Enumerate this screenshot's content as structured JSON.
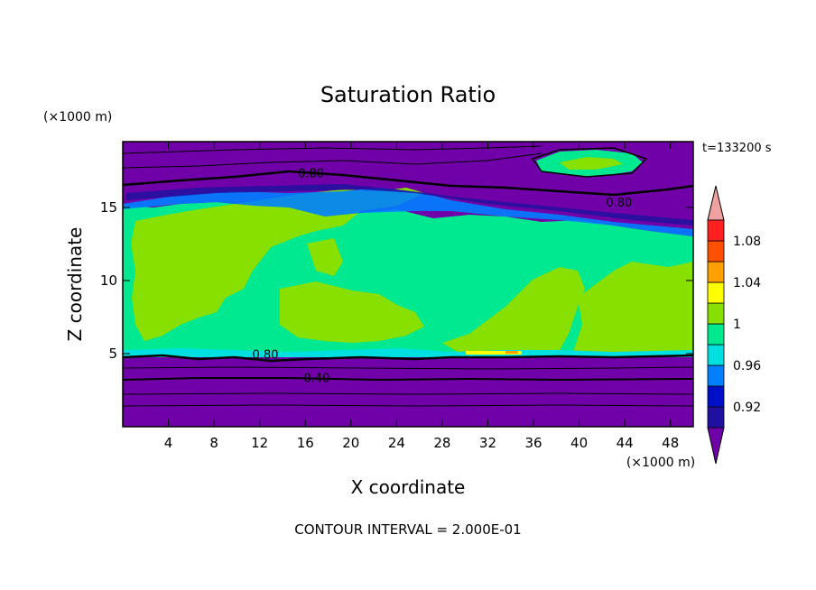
{
  "chart_data": {
    "type": "contour",
    "title": "Saturation Ratio",
    "xlabel": "X coordinate",
    "ylabel": "Z coordinate",
    "x_unit": "(×1000 m)",
    "y_unit": "(×1000 m)",
    "time_label": "t=133200 s",
    "footer": "CONTOUR INTERVAL = 2.000E-01",
    "xlim": [
      0,
      50
    ],
    "ylim": [
      0,
      19.5
    ],
    "x_ticks": [
      4,
      8,
      12,
      16,
      20,
      24,
      28,
      32,
      36,
      40,
      44,
      48
    ],
    "y_ticks": [
      5,
      10,
      15
    ],
    "contour_labels": [
      {
        "text": "0.80",
        "x": 16.5,
        "z": 17.3
      },
      {
        "text": "0.80",
        "x": 43.5,
        "z": 15.3
      },
      {
        "text": "0.80",
        "x": 12.5,
        "z": 4.9
      },
      {
        "text": "0.40",
        "x": 17.0,
        "z": 3.3
      }
    ],
    "colorbar": {
      "labels": [
        "1.08",
        "1.04",
        "1",
        "0.96",
        "0.92"
      ],
      "levels": [
        0.9,
        0.92,
        0.94,
        0.96,
        0.98,
        1.0,
        1.02,
        1.04,
        1.06,
        1.08,
        1.1
      ],
      "colors": [
        "#7000a8",
        "#2010a0",
        "#0010c8",
        "#0080ff",
        "#00e0e0",
        "#00e890",
        "#88e000",
        "#ffff00",
        "#ffa000",
        "#ff5000",
        "#ff2020",
        "#f0a0a0"
      ]
    },
    "layers": {
      "dry_top_z": 19.5,
      "upper_dry_region_bottom_z": 16.5,
      "saturated_layer_z": [
        5.0,
        15.0
      ],
      "lower_dry_region_top_z": 4.8,
      "contour_lines_z": [
        4.1,
        3.4,
        2.6,
        2.0
      ],
      "upper_contour_lines_z": [
        17.0,
        17.9,
        18.9
      ]
    }
  }
}
